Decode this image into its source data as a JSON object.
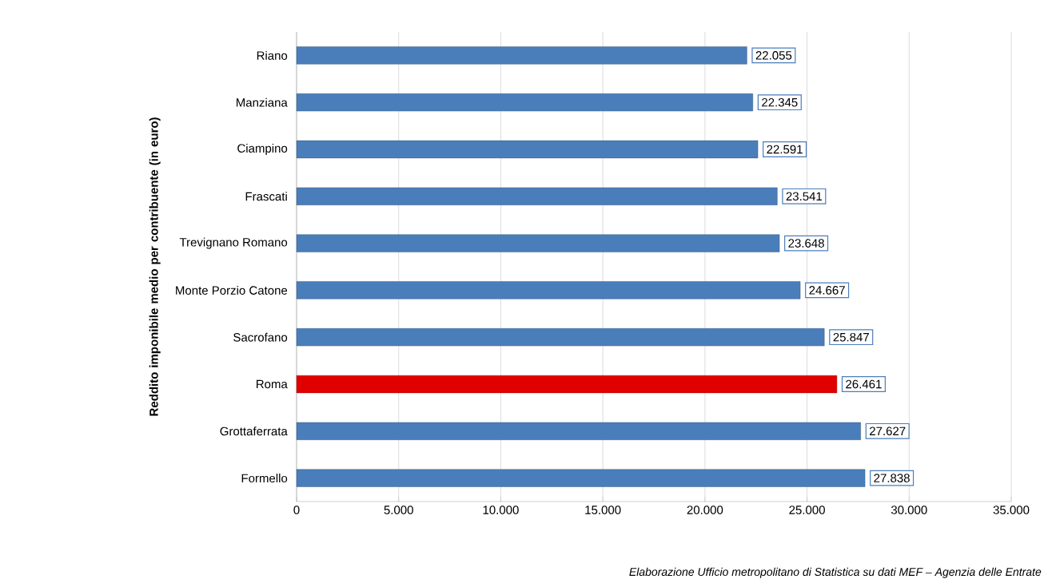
{
  "chart_data": {
    "type": "bar",
    "orientation": "horizontal",
    "ylabel": "Reddito imponibile medio per contribuente (in euro)",
    "categories": [
      "Riano",
      "Manziana",
      "Ciampino",
      "Frascati",
      "Trevignano Romano",
      "Monte Porzio Catone",
      "Sacrofano",
      "Roma",
      "Grottaferrata",
      "Formello"
    ],
    "values": [
      22055,
      22345,
      22591,
      23541,
      23648,
      24667,
      25847,
      26461,
      27627,
      27838
    ],
    "value_labels": [
      "22.055",
      "22.345",
      "22.591",
      "23.541",
      "23.648",
      "24.667",
      "25.847",
      "26.461",
      "27.627",
      "27.838"
    ],
    "colors": [
      "#4a7ebb",
      "#4a7ebb",
      "#4a7ebb",
      "#4a7ebb",
      "#4a7ebb",
      "#4a7ebb",
      "#4a7ebb",
      "#e00000",
      "#4a7ebb",
      "#4a7ebb"
    ],
    "xlim": [
      0,
      35000
    ],
    "xticks": [
      0,
      {
        "value": 5000,
        "label": "5.000"
      },
      {
        "value": 10000,
        "label": "10.000"
      },
      {
        "value": 15000,
        "label": "15.000"
      },
      {
        "value": 20000,
        "label": "20.000"
      },
      {
        "value": 25000,
        "label": "25.000"
      },
      {
        "value": 30000,
        "label": "30.000"
      },
      {
        "value": 35000,
        "label": "35.000"
      }
    ],
    "grid": "x",
    "annotations": [
      "Elaborazione Ufficio metropolitano di Statistica su dati MEF – Agenzia delle Entrate"
    ]
  }
}
